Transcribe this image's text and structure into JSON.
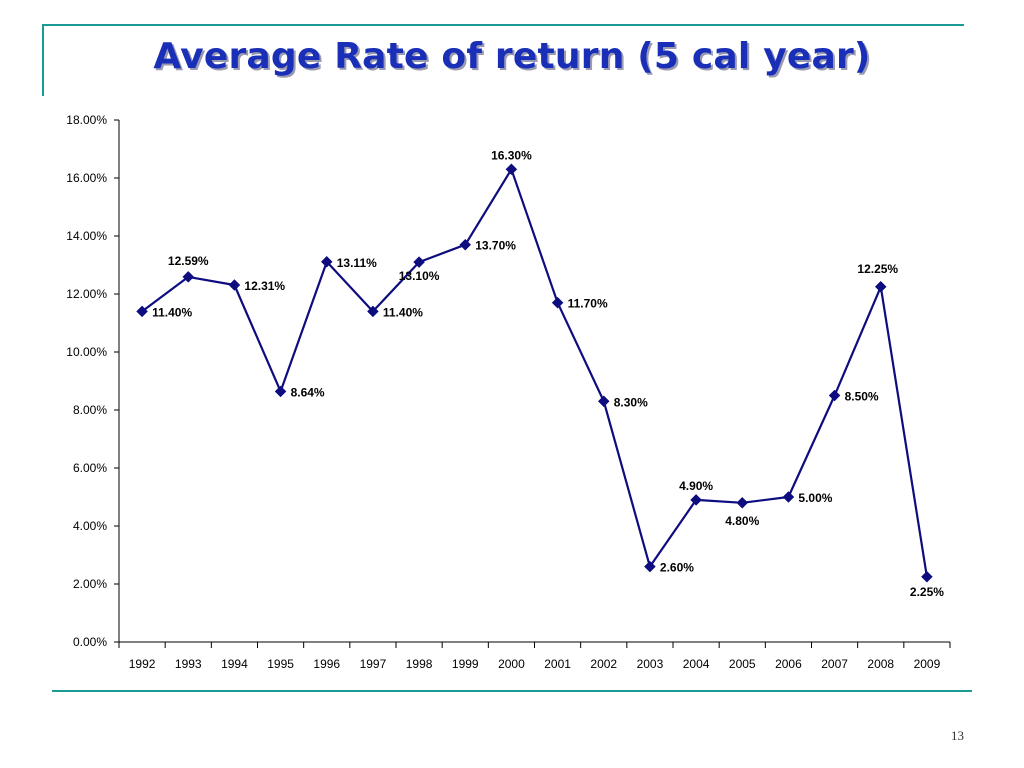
{
  "slide": {
    "title": "Average Rate of return (5 cal year)",
    "page_number": "13"
  },
  "colors": {
    "accent_line": "#1a9a96",
    "title": "#1a2fb8",
    "series": "#0d0d80"
  },
  "chart_data": {
    "type": "line",
    "title": "",
    "xlabel": "",
    "ylabel": "",
    "ylim": [
      0,
      18
    ],
    "y_tick_step": 2,
    "y_tick_labels": [
      "0.00%",
      "2.00%",
      "4.00%",
      "6.00%",
      "8.00%",
      "10.00%",
      "12.00%",
      "14.00%",
      "16.00%",
      "18.00%"
    ],
    "categories": [
      "1992",
      "1993",
      "1994",
      "1995",
      "1996",
      "1997",
      "1998",
      "1999",
      "2000",
      "2001",
      "2002",
      "2003",
      "2004",
      "2005",
      "2006",
      "2007",
      "2008",
      "2009"
    ],
    "series": [
      {
        "values": [
          11.4,
          12.59,
          12.31,
          8.64,
          13.11,
          11.4,
          13.1,
          13.7,
          16.3,
          11.7,
          8.3,
          2.6,
          4.9,
          4.8,
          5.0,
          8.5,
          12.25,
          2.25
        ],
        "labels": [
          "11.40%",
          "12.59%",
          "12.31%",
          "8.64%",
          "13.11%",
          "11.40%",
          "13.10%",
          "13.70%",
          "16.30%",
          "11.70%",
          "8.30%",
          "2.60%",
          "4.90%",
          "4.80%",
          "5.00%",
          "8.50%",
          "12.25%",
          "2.25%"
        ],
        "marker": "diamond"
      }
    ],
    "grid": false,
    "legend": "none"
  }
}
